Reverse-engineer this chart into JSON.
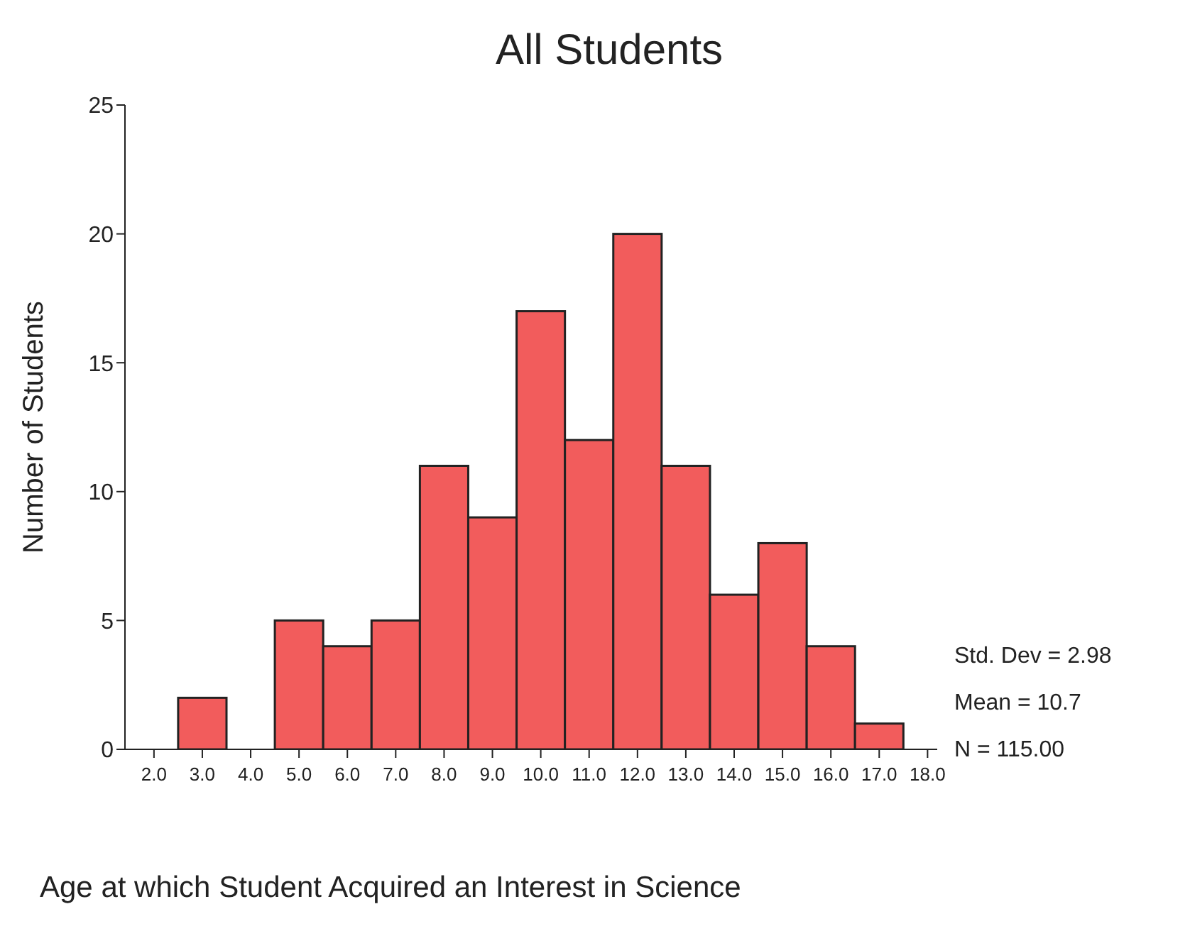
{
  "chart_data": {
    "type": "histogram",
    "title": "All Students",
    "xlabel": "Age at which Student Acquired an Interest in Science",
    "ylabel": "Number of Students",
    "bins": [
      2.5,
      3.5,
      4.5,
      5.5,
      6.5,
      7.5,
      8.5,
      9.5,
      10.5,
      11.5,
      12.5,
      13.5,
      14.5,
      15.5,
      16.5,
      17.5
    ],
    "values": [
      2,
      0,
      5,
      4,
      5,
      11,
      9,
      17,
      12,
      20,
      11,
      6,
      8,
      4,
      1
    ],
    "color": "#f25c5c",
    "xlim": [
      1.4,
      18.2
    ],
    "xticks": [
      {
        "value": 2,
        "label": "2.0"
      },
      {
        "value": 3,
        "label": "3.0"
      },
      {
        "value": 4,
        "label": "4.0"
      },
      {
        "value": 5,
        "label": "5.0"
      },
      {
        "value": 6,
        "label": "6.0"
      },
      {
        "value": 7,
        "label": "7.0"
      },
      {
        "value": 8,
        "label": "8.0"
      },
      {
        "value": 9,
        "label": "9.0"
      },
      {
        "value": 10,
        "label": "10.0"
      },
      {
        "value": 11,
        "label": "11.0"
      },
      {
        "value": 12,
        "label": "12.0"
      },
      {
        "value": 13,
        "label": "13.0"
      },
      {
        "value": 14,
        "label": "14.0"
      },
      {
        "value": 15,
        "label": "15.0"
      },
      {
        "value": 16,
        "label": "16.0"
      },
      {
        "value": 17,
        "label": "17.0"
      },
      {
        "value": 18,
        "label": "18.0"
      }
    ],
    "ylim": [
      0,
      25
    ],
    "yticks": [
      0,
      5,
      10,
      15,
      20,
      25
    ],
    "annotations": [
      "Std. Dev = 2.98",
      "Mean = 10.7",
      "N = 115.00"
    ]
  }
}
